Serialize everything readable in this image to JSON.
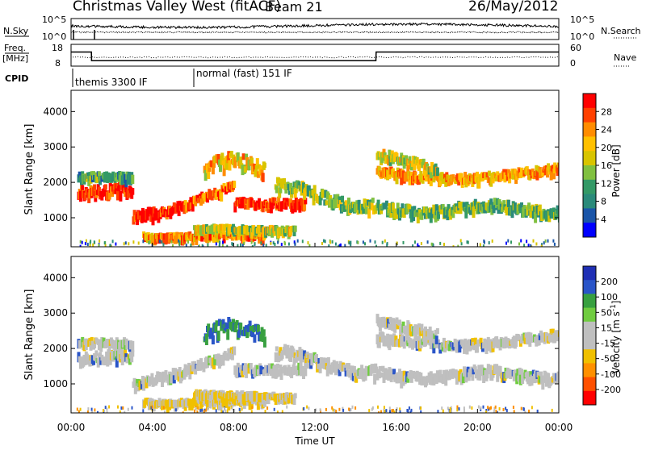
{
  "header": {
    "radar": "Christmas Valley West (fitACF)",
    "beam": "Beam 21",
    "date": "26/May/2012"
  },
  "chart_data": [
    {
      "type": "line",
      "name": "noise-panel",
      "ylabel_left": "N.Sky",
      "ylabel_right": "N.Search",
      "left_ticks": [
        "10^5",
        "10^0"
      ],
      "right_ticks": [
        "10^5",
        "10^0"
      ],
      "series": [
        {
          "name": "N.Sky",
          "style": "solid"
        },
        {
          "name": "N.Search",
          "style": "dotted"
        }
      ]
    },
    {
      "type": "line",
      "name": "freq-panel",
      "ylabel_left": [
        "Freq.",
        "[MHz]"
      ],
      "ylabel_right": "Nave",
      "left_ticks": [
        "18",
        "8"
      ],
      "right_ticks": [
        "60",
        "0"
      ],
      "freq_steps": {
        "x": [
          0,
          1.0,
          1.01,
          3.0,
          3.01,
          15.0,
          15.01,
          24.0
        ],
        "y": [
          14.5,
          14.5,
          10.5,
          10.5,
          10.5,
          10.5,
          14.5,
          14.5
        ]
      }
    },
    {
      "type": "table",
      "name": "cpid",
      "label": "CPID",
      "segments": [
        {
          "start": 0,
          "end": 6,
          "text": "themis 3300 IF"
        },
        {
          "start": 6,
          "end": 24,
          "text": "normal (fast) 151 IF"
        }
      ]
    },
    {
      "type": "heatmap",
      "name": "power",
      "ylabel": "Slant Range [km]",
      "xlim": [
        0,
        24
      ],
      "ylim": [
        180,
        4600
      ],
      "yticks": [
        1000,
        2000,
        3000,
        4000
      ],
      "colorbar": {
        "label": "Power [dB]",
        "ticks": [
          "28",
          "24",
          "20",
          "16",
          "12",
          "8",
          "4"
        ],
        "colors": [
          "#ff0000",
          "#ff4000",
          "#ff8c00",
          "#ffc000",
          "#d8c400",
          "#80c040",
          "#339966",
          "#2a8a7a",
          "#1a55a8",
          "#0000ff"
        ]
      }
    },
    {
      "type": "heatmap",
      "name": "velocity",
      "ylabel": "Slant Range [km]",
      "xlim": [
        0,
        24
      ],
      "ylim": [
        180,
        4600
      ],
      "yticks": [
        1000,
        2000,
        3000,
        4000
      ],
      "xticks": [
        "00:00",
        "04:00",
        "08:00",
        "12:00",
        "16:00",
        "20:00",
        "00:00"
      ],
      "xlabel": "Time UT",
      "colorbar": {
        "label_main": "Velocity [m s",
        "label_sup": "-1",
        "label_end": "]",
        "ticks": [
          "200",
          "100",
          "50",
          "15",
          "-15",
          "-50",
          "-100",
          "-200"
        ],
        "colors": [
          "#1f2fb4",
          "#2a55c8",
          "#38a040",
          "#70cc40",
          "#bfbfbf",
          "#bfbfbf",
          "#f0c000",
          "#ff9000",
          "#ff5000",
          "#ff0000"
        ]
      }
    }
  ]
}
